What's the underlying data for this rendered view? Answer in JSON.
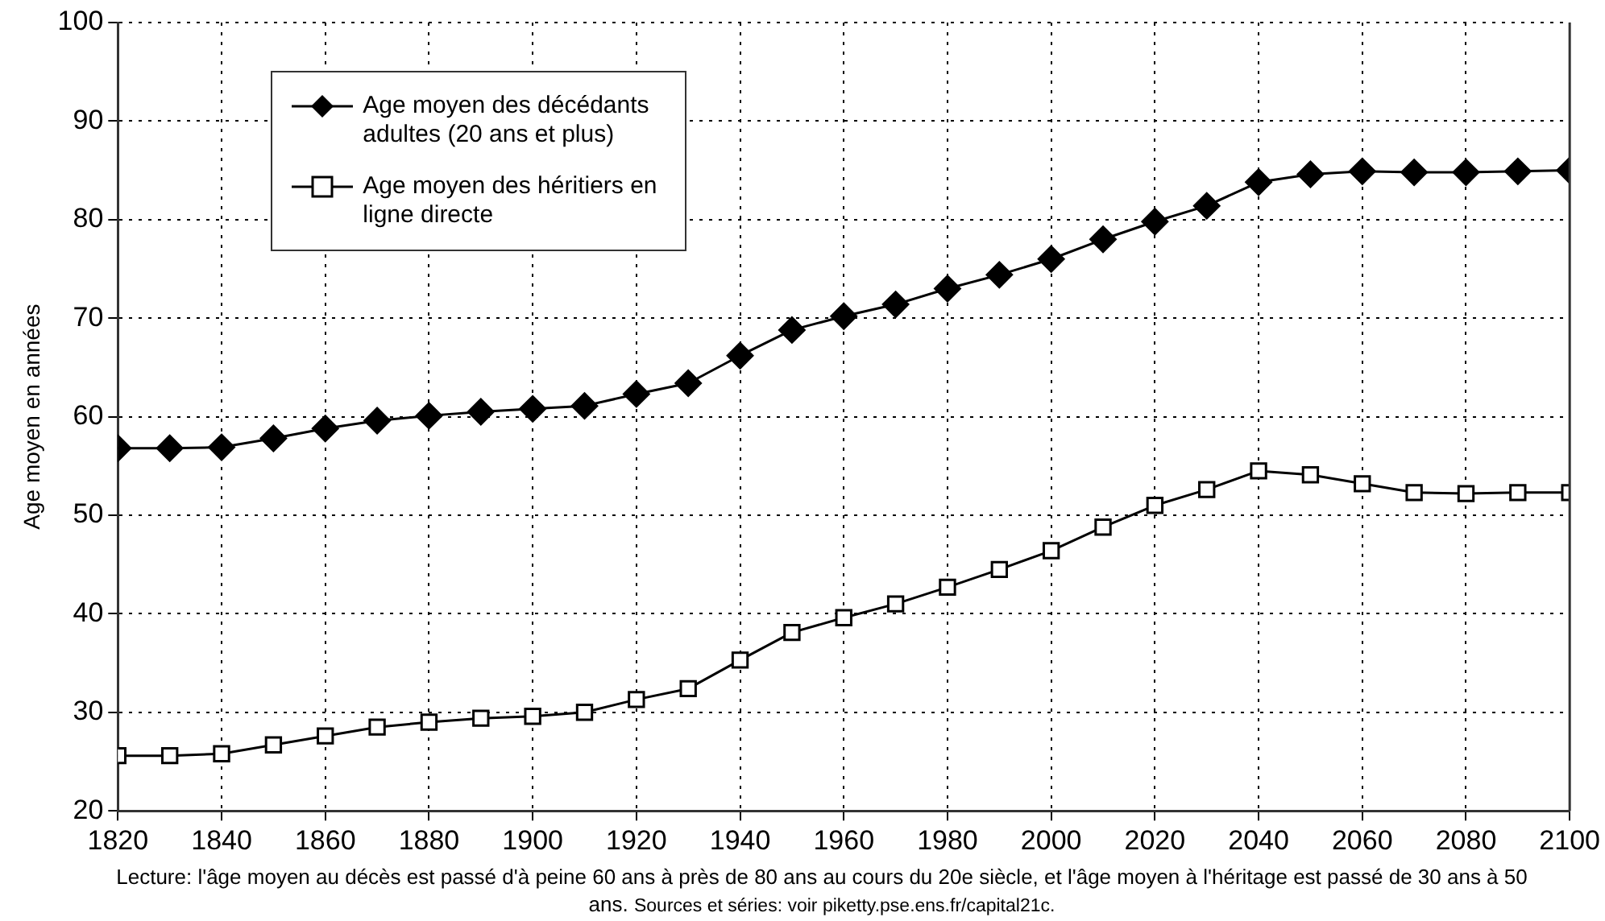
{
  "chart_data": {
    "type": "line",
    "ylabel": "Age moyen en années",
    "x": [
      1820,
      1830,
      1840,
      1850,
      1860,
      1870,
      1880,
      1890,
      1900,
      1910,
      1920,
      1930,
      1940,
      1950,
      1960,
      1970,
      1980,
      1990,
      2000,
      2010,
      2020,
      2030,
      2040,
      2050,
      2060,
      2070,
      2080,
      2090,
      2100
    ],
    "series": [
      {
        "name": "Age moyen des décédants adultes (20 ans et plus)",
        "color": "#000000",
        "marker": "diamond",
        "values": [
          56.8,
          56.8,
          56.9,
          57.8,
          58.8,
          59.6,
          60.1,
          60.5,
          60.8,
          61.1,
          62.3,
          63.4,
          66.2,
          68.8,
          70.2,
          71.4,
          73,
          74.4,
          76,
          78,
          79.8,
          81.4,
          83.8,
          84.6,
          84.9,
          84.8,
          84.8,
          84.9,
          85
        ]
      },
      {
        "name": "Age moyen des héritiers en ligne directe",
        "color": "#000000",
        "marker": "square",
        "values": [
          25.6,
          25.6,
          25.8,
          26.7,
          27.6,
          28.5,
          29,
          29.4,
          29.6,
          30,
          31.3,
          32.4,
          35.3,
          38.1,
          39.6,
          41,
          42.7,
          44.5,
          46.4,
          48.8,
          51,
          52.6,
          54.5,
          54.1,
          53.2,
          52.3,
          52.2,
          52.3,
          52.3
        ]
      }
    ],
    "xlim": [
      1820,
      2100
    ],
    "xticks": [
      1820,
      1840,
      1860,
      1880,
      1900,
      1920,
      1940,
      1960,
      1980,
      2000,
      2020,
      2040,
      2060,
      2080,
      2100
    ],
    "ylim": [
      20,
      100
    ],
    "yticks": [
      20,
      30,
      40,
      50,
      60,
      70,
      80,
      90,
      100
    ],
    "grid": true,
    "legend": "top left",
    "line_style": "solid",
    "annotations": [
      "Lecture: l'âge moyen au décès est passé d'à peine 60 ans à près de 80 ans au cours du 20e siècle, et l'âge moyen à l'héritage est passé de 30 ans à 50 ans.",
      "Sources et séries: voir piketty.pse.ens.fr/capital21c."
    ]
  }
}
